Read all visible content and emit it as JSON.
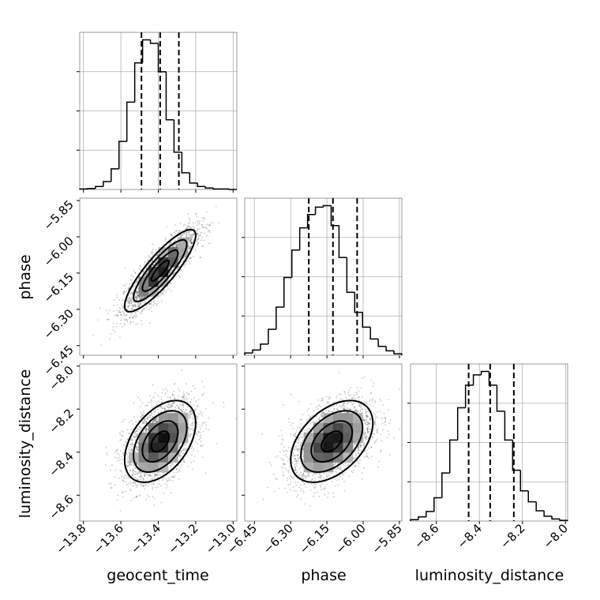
{
  "chart_data": {
    "type": "corner",
    "parameters": [
      "geocent_time",
      "phase",
      "luminosity_distance"
    ],
    "axes": {
      "geocent_time": {
        "label": "geocent_time",
        "range": [
          -13.82,
          -12.98
        ],
        "ticks": [
          -13.8,
          -13.6,
          -13.4,
          -13.2,
          -13.0
        ],
        "tick_labels": [
          "−13.8",
          "−13.6",
          "−13.4",
          "−13.2",
          "−13.0"
        ]
      },
      "phase": {
        "label": "phase",
        "range": [
          -6.49,
          -5.84
        ],
        "ticks": [
          -6.45,
          -6.3,
          -6.15,
          -6.0,
          -5.85
        ],
        "tick_labels": [
          "−6.45",
          "−6.30",
          "−6.15",
          "−6.00",
          "−5.85"
        ]
      },
      "luminosity_distance": {
        "label": "luminosity_distance",
        "range": [
          -8.72,
          -7.99
        ],
        "ticks": [
          -8.6,
          -8.4,
          -8.2,
          -8.0
        ],
        "tick_labels": [
          "−8.6",
          "−8.4",
          "−8.2",
          "−8.0"
        ]
      }
    },
    "histograms": [
      {
        "parameter": "geocent_time",
        "bin_edges": [
          -13.82,
          -13.778,
          -13.736,
          -13.694,
          -13.652,
          -13.61,
          -13.568,
          -13.526,
          -13.484,
          -13.442,
          -13.4,
          -13.358,
          -13.316,
          -13.274,
          -13.232,
          -13.19,
          -13.148,
          -13.106,
          -13.064,
          -13.022,
          -12.98
        ],
        "counts": [
          1,
          2,
          6,
          16,
          42,
          98,
          178,
          258,
          305,
          298,
          240,
          142,
          76,
          34,
          13,
          6,
          3,
          1,
          1,
          0
        ],
        "quantiles": [
          -13.49,
          -13.39,
          -13.29
        ]
      },
      {
        "parameter": "phase",
        "bin_edges": [
          -6.49,
          -6.4575,
          -6.425,
          -6.3925,
          -6.36,
          -6.3275,
          -6.295,
          -6.2625,
          -6.23,
          -6.1975,
          -6.165,
          -6.1325,
          -6.1,
          -6.0675,
          -6.035,
          -6.0025,
          -5.97,
          -5.9375,
          -5.905,
          -5.8725,
          -5.84
        ],
        "counts": [
          3,
          7,
          15,
          35,
          65,
          105,
          142,
          172,
          190,
          200,
          202,
          175,
          132,
          85,
          58,
          38,
          22,
          12,
          6,
          2
        ],
        "quantiles": [
          -6.225,
          -6.125,
          -6.025
        ]
      },
      {
        "parameter": "luminosity_distance",
        "bin_edges": [
          -8.72,
          -8.6835,
          -8.647,
          -8.6105,
          -8.574,
          -8.5375,
          -8.501,
          -8.4645,
          -8.428,
          -8.3915,
          -8.355,
          -8.3185,
          -8.282,
          -8.2455,
          -8.209,
          -8.1725,
          -8.136,
          -8.0995,
          -8.063,
          -8.0265,
          -7.99
        ],
        "counts": [
          2,
          6,
          14,
          34,
          70,
          118,
          165,
          198,
          213,
          218,
          198,
          160,
          118,
          74,
          44,
          28,
          15,
          7,
          3,
          1
        ],
        "quantiles": [
          -8.45,
          -8.35,
          -8.24
        ]
      }
    ],
    "pairs": [
      {
        "x": "geocent_time",
        "y": "phase",
        "mean": [
          -13.39,
          -6.14
        ],
        "std": [
          0.095,
          0.085
        ],
        "correlation": 0.86,
        "contour_sigma_levels": [
          0.5,
          1.0,
          1.5,
          2.0
        ]
      },
      {
        "x": "geocent_time",
        "y": "luminosity_distance",
        "mean": [
          -13.39,
          -8.35
        ],
        "std": [
          0.095,
          0.095
        ],
        "correlation": 0.45,
        "contour_sigma_levels": [
          0.5,
          1.0,
          1.5,
          2.0
        ]
      },
      {
        "x": "phase",
        "y": "luminosity_distance",
        "mean": [
          -6.13,
          -8.35
        ],
        "std": [
          0.085,
          0.095
        ],
        "correlation": 0.45,
        "contour_sigma_levels": [
          0.5,
          1.0,
          1.5,
          2.0
        ]
      }
    ]
  },
  "style": {
    "line_color": "#000000",
    "frame_color": "#7f7f7f",
    "grid_color": "#b0b0b0",
    "sample_color": "#000000",
    "density_low": "#d9d9d9",
    "density_high": "#000000"
  }
}
